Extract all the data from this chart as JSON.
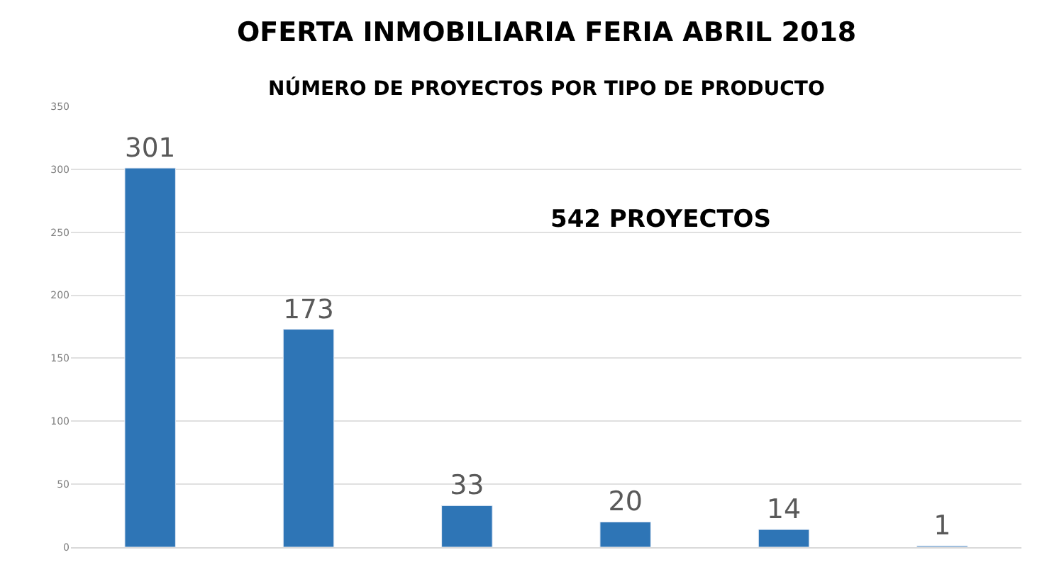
{
  "chart_data": {
    "type": "bar",
    "title": "OFERTA INMOBILIARIA FERIA ABRIL 2018",
    "subtitle": "NÚMERO DE PROYECTOS POR TIPO DE PRODUCTO",
    "categories": [
      null,
      null,
      null,
      null,
      null,
      null
    ],
    "values": [
      301,
      173,
      33,
      20,
      14,
      1
    ],
    "color": "#2e75b6",
    "data_labels": true,
    "ylim": [
      0,
      350
    ],
    "yticks": [
      0,
      50,
      100,
      150,
      200,
      250,
      300,
      350
    ],
    "grid": "y",
    "annotations": [
      "542 PROYECTOS"
    ]
  }
}
